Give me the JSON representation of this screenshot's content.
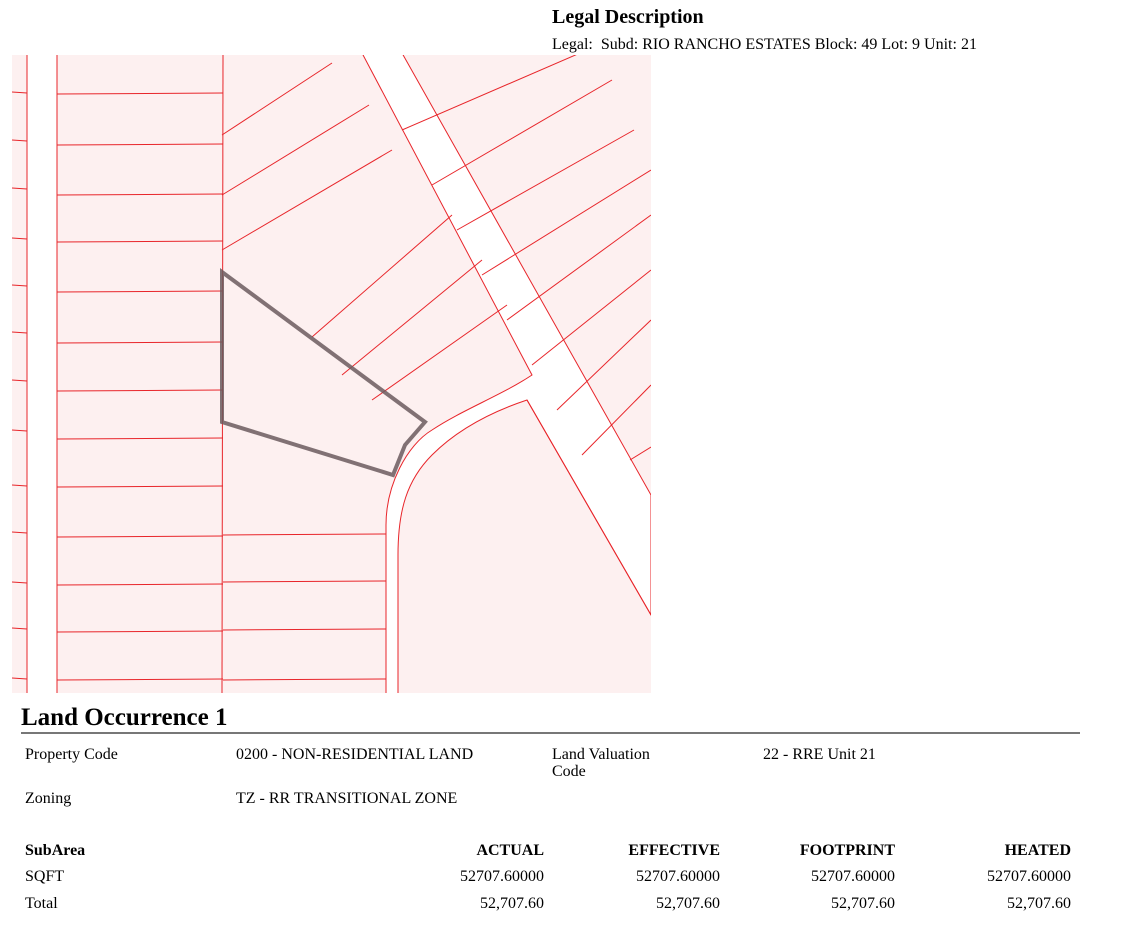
{
  "legal": {
    "title": "Legal Description",
    "text": "Legal:  Subd: RIO RANCHO ESTATES Block: 49 Lot: 9 Unit: 21"
  },
  "map": {
    "parcel_fill": "#fdf0f0",
    "line_color": "#e8252a",
    "selected_outline": "#6b5a5e"
  },
  "land": {
    "title": "Land Occurrence 1",
    "property_code_label": "Property Code",
    "property_code": "0200 - NON-RESIDENTIAL LAND",
    "land_valuation_label": "Land Valuation Code",
    "land_valuation": "22 - RRE Unit 21",
    "zoning_label": "Zoning",
    "zoning": "TZ - RR TRANSITIONAL ZONE"
  },
  "table": {
    "headers": [
      "SubArea",
      "ACTUAL",
      "EFFECTIVE",
      "FOOTPRINT",
      "HEATED"
    ],
    "rows": [
      [
        "SQFT",
        "52707.60000",
        "52707.60000",
        "52707.60000",
        "52707.60000"
      ],
      [
        "Total",
        "52,707.60",
        "52,707.60",
        "52,707.60",
        "52,707.60"
      ]
    ]
  }
}
